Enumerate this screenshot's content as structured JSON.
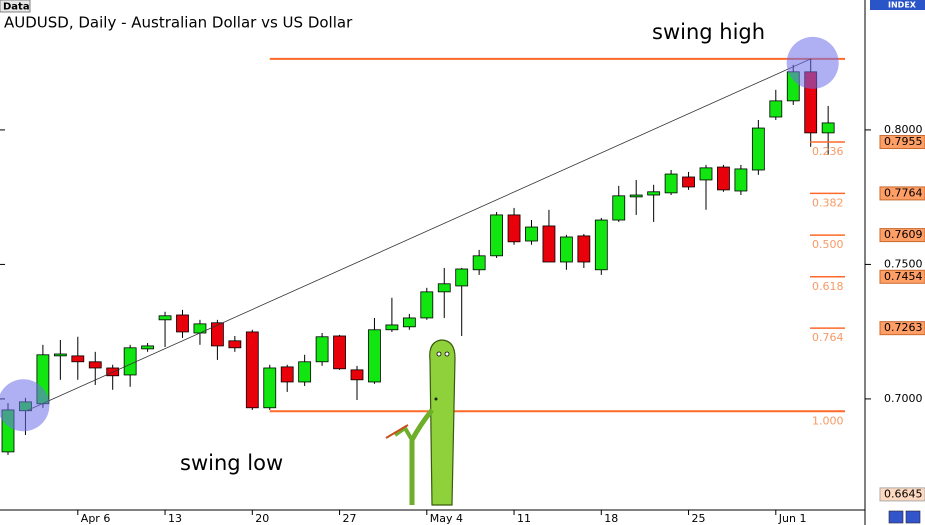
{
  "chart_data": {
    "type": "candlestick",
    "title": "AUDUSD, Daily - Australian Dollar vs US Dollar",
    "data_button": "Data",
    "index_label": "INDEX",
    "categories": [
      null,
      null,
      null,
      null,
      "Apr 6",
      null,
      null,
      null,
      null,
      "13",
      null,
      null,
      null,
      null,
      "20",
      null,
      null,
      null,
      null,
      "27",
      null,
      null,
      null,
      null,
      "May 4",
      null,
      null,
      null,
      null,
      "11",
      null,
      null,
      null,
      null,
      "18",
      null,
      null,
      null,
      null,
      "25",
      null,
      null,
      null,
      null,
      "Jun 1",
      null,
      null,
      null
    ],
    "open": [
      0.6803,
      0.6956,
      0.6982,
      0.716,
      0.716,
      0.7138,
      0.7115,
      0.7089,
      0.7186,
      0.7294,
      0.7312,
      0.7245,
      0.7283,
      0.7216,
      0.7249,
      0.6967,
      0.7119,
      0.7063,
      0.7138,
      0.7234,
      0.7108,
      0.7063,
      0.7257,
      0.7268,
      0.7301,
      0.7398,
      0.742,
      0.748,
      0.7532,
      0.7684,
      0.7587,
      0.7643,
      0.7509,
      0.7606,
      0.748,
      0.7665,
      0.7751,
      0.7758,
      0.7766,
      0.7825,
      0.7814,
      0.7862,
      0.7773,
      0.7851,
      0.8048,
      0.8108,
      0.8216,
      0.7989
    ],
    "high": [
      0.6985,
      0.7004,
      0.7201,
      0.7219,
      0.7231,
      0.7175,
      0.7127,
      0.7201,
      0.7208,
      0.7324,
      0.7331,
      0.7294,
      0.7294,
      0.7234,
      0.7257,
      0.7127,
      0.7127,
      0.7164,
      0.7245,
      0.7238,
      0.7123,
      0.7301,
      0.7376,
      0.7316,
      0.7413,
      0.7487,
      0.7487,
      0.7554,
      0.7695,
      0.771,
      0.7665,
      0.7703,
      0.761,
      0.7613,
      0.7673,
      0.7792,
      0.7814,
      0.7796,
      0.7851,
      0.7844,
      0.787,
      0.787,
      0.787,
      0.8037,
      0.8149,
      0.8242,
      0.8264,
      0.8089
    ],
    "low": [
      0.6792,
      0.6866,
      0.6967,
      0.7071,
      0.7071,
      0.7052,
      0.7034,
      0.7045,
      0.7175,
      0.7193,
      0.7227,
      0.7201,
      0.7145,
      0.7175,
      0.6959,
      0.6959,
      0.7026,
      0.7048,
      0.7123,
      0.7108,
      0.6996,
      0.7056,
      0.7249,
      0.7257,
      0.7294,
      0.7301,
      0.7234,
      0.7461,
      0.7524,
      0.7573,
      0.7573,
      0.7509,
      0.748,
      0.7487,
      0.7461,
      0.7658,
      0.7684,
      0.7658,
      0.7758,
      0.7777,
      0.7703,
      0.777,
      0.7758,
      0.7833,
      0.8037,
      0.8093,
      0.7937,
      0.7907
    ],
    "close": [
      0.6959,
      0.6989,
      0.7164,
      0.7167,
      0.7138,
      0.7115,
      0.7086,
      0.719,
      0.7197,
      0.7309,
      0.7249,
      0.7279,
      0.7197,
      0.719,
      0.6967,
      0.7115,
      0.7063,
      0.7138,
      0.7231,
      0.7112,
      0.7071,
      0.7257,
      0.7275,
      0.7301,
      0.7398,
      0.7428,
      0.7483,
      0.7532,
      0.7684,
      0.7584,
      0.7639,
      0.7509,
      0.7602,
      0.7509,
      0.7665,
      0.7755,
      0.7758,
      0.777,
      0.7836,
      0.7788,
      0.7859,
      0.7777,
      0.7855,
      0.8007,
      0.8108,
      0.8216,
      0.7989,
      0.8026
    ],
    "up_color": "#11e611",
    "down_color": "#e8000b",
    "ylim": [
      0.6587,
      0.8483
    ],
    "yticks": [
      {
        "value": 0.7,
        "label": "0.7000"
      },
      {
        "value": 0.75,
        "label": "0.7500"
      },
      {
        "value": 0.8,
        "label": "0.8000"
      }
    ],
    "price_marker": {
      "value": 0.6645,
      "label": "0.6645"
    },
    "fibonacci": {
      "color": "#ff6a2a",
      "high": {
        "value": 0.8264,
        "annotation": "swing high"
      },
      "low": {
        "value": 0.6954,
        "ratio": "1.000",
        "annotation": "swing low"
      },
      "levels": [
        {
          "ratio": "0.236",
          "value": 0.7955,
          "label": "0.7955"
        },
        {
          "ratio": "0.382",
          "value": 0.7764,
          "label": "0.7764"
        },
        {
          "ratio": "0.500",
          "value": 0.7609,
          "label": "0.7609"
        },
        {
          "ratio": "0.618",
          "value": 0.7454,
          "label": "0.7454"
        },
        {
          "ratio": "0.764",
          "value": 0.7263,
          "label": "0.7263"
        }
      ]
    }
  }
}
